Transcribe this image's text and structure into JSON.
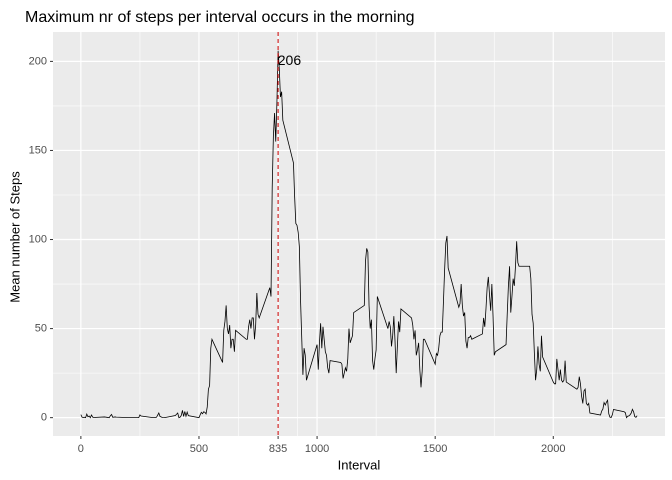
{
  "chart_data": {
    "type": "line",
    "title": "Maximum nr of steps per interval occurs in the morning",
    "x_label": "Interval",
    "y_label": "Mean number of Steps",
    "xlim": [
      -118,
      2473
    ],
    "ylim": [
      -10.3,
      216.5
    ],
    "xticks": [
      0,
      500,
      835,
      1000,
      1500,
      2000
    ],
    "yticks": [
      0,
      50,
      100,
      150,
      200
    ],
    "grid": true,
    "vline": {
      "x": 835,
      "color": "#cc0000"
    },
    "annotations": [
      {
        "text": "206",
        "x": 883,
        "y": 200
      }
    ],
    "series": [
      {
        "name": "steps",
        "color": "#000000",
        "x": [
          0,
          5,
          10,
          15,
          20,
          25,
          30,
          35,
          40,
          45,
          50,
          55,
          100,
          110,
          120,
          125,
          130,
          135,
          145,
          150,
          200,
          230,
          245,
          250,
          255,
          305,
          310,
          320,
          330,
          335,
          345,
          355,
          400,
          410,
          415,
          420,
          425,
          430,
          435,
          440,
          445,
          450,
          455,
          500,
          505,
          510,
          515,
          520,
          525,
          530,
          535,
          540,
          545,
          550,
          555,
          600,
          605,
          610,
          615,
          620,
          625,
          630,
          635,
          640,
          645,
          650,
          655,
          700,
          705,
          710,
          715,
          720,
          725,
          730,
          735,
          740,
          745,
          750,
          755,
          800,
          805,
          810,
          815,
          820,
          825,
          830,
          835,
          840,
          845,
          850,
          855,
          900,
          905,
          910,
          915,
          920,
          925,
          930,
          935,
          940,
          945,
          950,
          955,
          1000,
          1005,
          1010,
          1015,
          1020,
          1025,
          1030,
          1035,
          1040,
          1045,
          1050,
          1055,
          1100,
          1105,
          1110,
          1115,
          1120,
          1125,
          1130,
          1135,
          1140,
          1145,
          1150,
          1155,
          1200,
          1205,
          1210,
          1215,
          1220,
          1225,
          1230,
          1235,
          1240,
          1245,
          1250,
          1255,
          1300,
          1305,
          1310,
          1315,
          1320,
          1325,
          1330,
          1335,
          1340,
          1345,
          1350,
          1355,
          1400,
          1405,
          1410,
          1415,
          1420,
          1425,
          1430,
          1435,
          1440,
          1445,
          1450,
          1455,
          1500,
          1505,
          1510,
          1515,
          1520,
          1525,
          1530,
          1535,
          1540,
          1545,
          1550,
          1555,
          1600,
          1605,
          1610,
          1615,
          1620,
          1625,
          1630,
          1635,
          1640,
          1645,
          1650,
          1655,
          1700,
          1705,
          1710,
          1715,
          1720,
          1725,
          1730,
          1735,
          1740,
          1745,
          1750,
          1755,
          1800,
          1805,
          1810,
          1815,
          1820,
          1825,
          1830,
          1835,
          1840,
          1845,
          1850,
          1855,
          1900,
          1905,
          1910,
          1915,
          1920,
          1925,
          1930,
          1935,
          1940,
          1945,
          1950,
          1955,
          2000,
          2005,
          2010,
          2015,
          2020,
          2025,
          2030,
          2035,
          2040,
          2045,
          2050,
          2055,
          2100,
          2105,
          2110,
          2115,
          2120,
          2125,
          2130,
          2135,
          2140,
          2145,
          2150,
          2155,
          2200,
          2205,
          2210,
          2215,
          2220,
          2225,
          2230,
          2235,
          2240,
          2245,
          2250,
          2255,
          2300,
          2305,
          2310,
          2315,
          2320,
          2325,
          2330,
          2335,
          2340,
          2345,
          2350,
          2355
        ],
        "values": [
          1.7,
          0.3,
          0.1,
          0.2,
          0,
          2,
          0.5,
          0.9,
          0,
          1.5,
          0.3,
          0.1,
          0.4,
          0.2,
          0,
          1.1,
          1.8,
          0.2,
          0.4,
          0.3,
          0,
          0,
          0,
          1.5,
          0.9,
          0,
          0,
          0.2,
          2.6,
          0.7,
          0.1,
          0,
          1.2,
          2.6,
          0,
          0.3,
          1.2,
          4.1,
          0.7,
          3.5,
          0.8,
          3.1,
          1.1,
          0,
          1.6,
          3,
          2.2,
          3.3,
          3,
          2.1,
          6,
          16,
          18,
          39,
          44,
          31,
          49,
          54,
          63,
          50,
          47,
          52,
          39,
          44,
          44,
          37,
          49,
          44,
          44,
          51,
          55,
          50,
          56,
          56,
          44,
          52,
          70,
          58,
          56,
          73,
          68,
          129,
          158,
          171,
          155,
          177,
          206,
          196,
          180,
          183,
          167,
          143,
          124,
          109,
          108,
          104,
          96,
          66,
          45,
          24,
          39,
          35,
          21,
          41,
          27,
          42,
          53,
          39,
          51,
          44,
          37,
          35,
          28,
          25,
          32,
          31,
          30,
          22,
          25,
          28,
          26,
          33,
          50,
          42,
          44,
          46,
          59,
          63,
          88,
          95,
          93,
          63,
          50,
          55,
          32,
          27,
          33,
          38,
          68,
          50,
          54,
          51,
          40,
          46,
          57,
          43,
          25,
          40,
          54,
          48,
          61,
          56,
          52,
          44,
          49,
          35,
          38,
          42,
          27,
          17,
          26,
          44,
          44,
          30,
          36,
          35,
          39,
          46,
          48,
          48,
          65,
          83,
          98,
          102,
          84,
          62,
          64,
          75,
          63,
          57,
          59,
          43,
          39,
          45,
          45,
          46,
          44,
          47,
          56,
          51,
          61,
          73,
          79,
          69,
          60,
          75,
          57,
          35,
          37,
          41,
          58,
          74,
          85,
          59,
          68,
          78,
          74,
          85,
          99,
          87,
          85,
          85,
          78,
          58,
          53,
          36,
          21,
          27,
          40,
          30,
          26,
          46,
          34,
          20,
          19,
          19,
          33,
          27,
          21,
          27,
          21,
          20,
          21,
          32,
          20,
          16,
          17,
          23,
          19,
          12,
          8,
          15,
          16,
          8,
          7,
          8,
          2.6,
          1.5,
          3.7,
          4.8,
          8.5,
          7.1,
          8.7,
          9.8,
          2.2,
          0.3,
          0.1,
          1.6,
          4.6,
          3.3,
          2.8,
          0,
          0.8,
          1,
          1.6,
          2.6,
          4.7,
          3.3,
          0.6,
          0.2,
          1.1
        ]
      }
    ]
  }
}
